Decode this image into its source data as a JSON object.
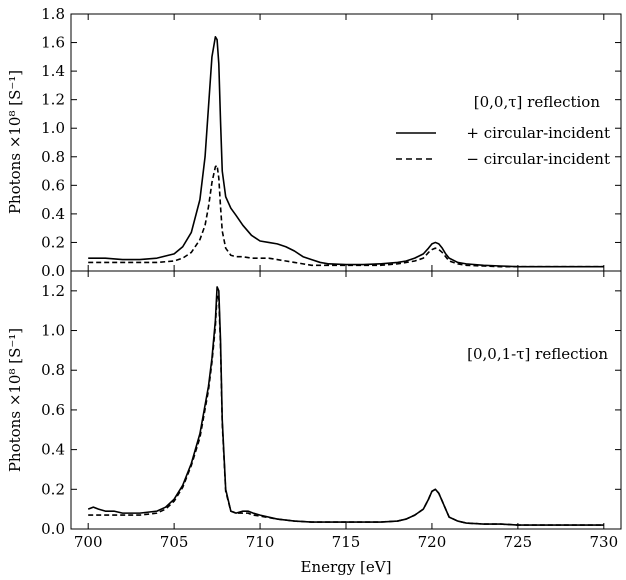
{
  "chart_data": [
    {
      "type": "line",
      "panel": "top",
      "annotation": "[0,0,τ] reflection",
      "ylabel": "Photons ×10⁸ [S⁻¹]",
      "xlabel": "",
      "xlim": [
        699,
        731
      ],
      "ylim": [
        0.0,
        1.8
      ],
      "yticks": [
        0.0,
        0.2,
        0.4,
        0.6,
        0.8,
        1.0,
        1.2,
        1.4,
        1.6,
        1.8
      ],
      "ytick_labels": [
        "0.0",
        "0.2",
        "0.4",
        "0.6",
        "0.8",
        "1.0",
        "1.2",
        "1.4",
        "1.6",
        "1.8"
      ],
      "grid": false,
      "legend_position": "right",
      "series": [
        {
          "name": "+ circular-incident",
          "style": "solid",
          "color": "#000000",
          "x": [
            700,
            701,
            702,
            703,
            704,
            705,
            705.5,
            706,
            706.5,
            706.8,
            707.0,
            707.2,
            707.4,
            707.5,
            707.6,
            707.7,
            707.8,
            708.0,
            708.3,
            708.6,
            709.0,
            709.5,
            710.0,
            710.5,
            711.0,
            711.5,
            712.0,
            712.5,
            713.0,
            713.5,
            714.0,
            715,
            716,
            717,
            718,
            718.5,
            719.0,
            719.5,
            719.8,
            720.0,
            720.2,
            720.4,
            720.6,
            720.8,
            721.0,
            721.5,
            722,
            723,
            724,
            725,
            726,
            727,
            728,
            729,
            730
          ],
          "y": [
            0.09,
            0.09,
            0.08,
            0.08,
            0.09,
            0.12,
            0.17,
            0.27,
            0.5,
            0.8,
            1.15,
            1.5,
            1.64,
            1.62,
            1.45,
            1.05,
            0.7,
            0.52,
            0.44,
            0.39,
            0.32,
            0.25,
            0.21,
            0.2,
            0.19,
            0.17,
            0.14,
            0.1,
            0.08,
            0.06,
            0.05,
            0.045,
            0.045,
            0.05,
            0.06,
            0.07,
            0.09,
            0.12,
            0.16,
            0.19,
            0.2,
            0.19,
            0.16,
            0.12,
            0.09,
            0.06,
            0.05,
            0.04,
            0.035,
            0.03,
            0.03,
            0.03,
            0.03,
            0.03,
            0.03
          ]
        },
        {
          "name": "− circular-incident",
          "style": "dashed",
          "color": "#000000",
          "x": [
            700,
            701,
            702,
            703,
            704,
            705,
            705.5,
            706,
            706.5,
            706.8,
            707.0,
            707.2,
            707.4,
            707.5,
            707.6,
            707.7,
            707.8,
            708.0,
            708.3,
            708.6,
            709.0,
            709.5,
            710.0,
            710.5,
            711.0,
            711.5,
            712.0,
            712.5,
            713.0,
            713.5,
            714.0,
            715,
            716,
            717,
            718,
            718.5,
            719.0,
            719.5,
            719.8,
            720.0,
            720.2,
            720.4,
            720.6,
            720.8,
            721.0,
            721.5,
            722,
            723,
            724,
            725,
            726,
            727,
            728,
            729,
            730
          ],
          "y": [
            0.06,
            0.06,
            0.06,
            0.06,
            0.06,
            0.07,
            0.09,
            0.13,
            0.22,
            0.32,
            0.45,
            0.62,
            0.73,
            0.74,
            0.65,
            0.45,
            0.28,
            0.16,
            0.11,
            0.1,
            0.1,
            0.09,
            0.09,
            0.09,
            0.08,
            0.07,
            0.06,
            0.05,
            0.04,
            0.04,
            0.04,
            0.04,
            0.04,
            0.04,
            0.05,
            0.06,
            0.07,
            0.09,
            0.13,
            0.15,
            0.16,
            0.15,
            0.13,
            0.1,
            0.07,
            0.05,
            0.04,
            0.035,
            0.03,
            0.03,
            0.03,
            0.03,
            0.03,
            0.03,
            0.03
          ]
        }
      ]
    },
    {
      "type": "line",
      "panel": "bottom",
      "annotation": "[0,0,1-τ] reflection",
      "ylabel": "Photons ×10⁸ [S⁻¹]",
      "xlabel": "Energy [eV]",
      "xlim": [
        699,
        731
      ],
      "ylim": [
        0.0,
        1.3
      ],
      "xticks": [
        700,
        705,
        710,
        715,
        720,
        725,
        730
      ],
      "xtick_labels": [
        "700",
        "705",
        "710",
        "715",
        "720",
        "725",
        "730"
      ],
      "yticks": [
        0.0,
        0.2,
        0.4,
        0.6,
        0.8,
        1.0,
        1.2
      ],
      "ytick_labels": [
        "0.0",
        "0.2",
        "0.4",
        "0.6",
        "0.8",
        "1.0",
        "1.2"
      ],
      "grid": false,
      "series": [
        {
          "style": "solid",
          "color": "#000000",
          "x": [
            700,
            700.3,
            700.6,
            701,
            701.5,
            702,
            703,
            704,
            704.5,
            705,
            705.5,
            706,
            706.5,
            707.0,
            707.2,
            707.4,
            707.5,
            707.6,
            707.7,
            707.8,
            708.0,
            708.3,
            708.6,
            709.0,
            709.3,
            709.6,
            710,
            711,
            712,
            713,
            714,
            715,
            716,
            717,
            718,
            718.5,
            719.0,
            719.5,
            719.8,
            720.0,
            720.2,
            720.4,
            720.6,
            720.8,
            721.0,
            721.5,
            722,
            723,
            724,
            725,
            726,
            727,
            728,
            729,
            730
          ],
          "y": [
            0.1,
            0.11,
            0.1,
            0.09,
            0.09,
            0.08,
            0.08,
            0.09,
            0.11,
            0.15,
            0.22,
            0.33,
            0.48,
            0.72,
            0.86,
            1.05,
            1.22,
            1.2,
            0.95,
            0.55,
            0.2,
            0.09,
            0.08,
            0.09,
            0.09,
            0.08,
            0.07,
            0.05,
            0.04,
            0.035,
            0.035,
            0.035,
            0.035,
            0.035,
            0.04,
            0.05,
            0.07,
            0.1,
            0.15,
            0.19,
            0.2,
            0.18,
            0.14,
            0.1,
            0.06,
            0.04,
            0.03,
            0.025,
            0.025,
            0.02,
            0.02,
            0.02,
            0.02,
            0.02,
            0.02
          ]
        },
        {
          "style": "dashed",
          "color": "#000000",
          "x": [
            700,
            700.3,
            700.6,
            701,
            701.5,
            702,
            703,
            704,
            704.5,
            705,
            705.5,
            706,
            706.5,
            707.0,
            707.2,
            707.4,
            707.5,
            707.6,
            707.7,
            707.8,
            708.0,
            708.3,
            708.6,
            709.0,
            709.3,
            709.6,
            710,
            711,
            712,
            713,
            714,
            715,
            716,
            717,
            718,
            718.5,
            719.0,
            719.5,
            719.8,
            720.0,
            720.2,
            720.4,
            720.6,
            720.8,
            721.0,
            721.5,
            722,
            723,
            724,
            725,
            726,
            727,
            728,
            729,
            730
          ],
          "y": [
            0.07,
            0.07,
            0.07,
            0.07,
            0.07,
            0.07,
            0.07,
            0.08,
            0.1,
            0.14,
            0.21,
            0.32,
            0.46,
            0.7,
            0.84,
            1.02,
            1.18,
            1.16,
            0.92,
            0.53,
            0.19,
            0.09,
            0.08,
            0.08,
            0.08,
            0.07,
            0.065,
            0.05,
            0.04,
            0.035,
            0.035,
            0.035,
            0.035,
            0.035,
            0.04,
            0.05,
            0.07,
            0.1,
            0.15,
            0.19,
            0.2,
            0.18,
            0.14,
            0.1,
            0.06,
            0.04,
            0.03,
            0.025,
            0.025,
            0.02,
            0.02,
            0.02,
            0.02,
            0.02,
            0.02
          ]
        }
      ]
    }
  ]
}
